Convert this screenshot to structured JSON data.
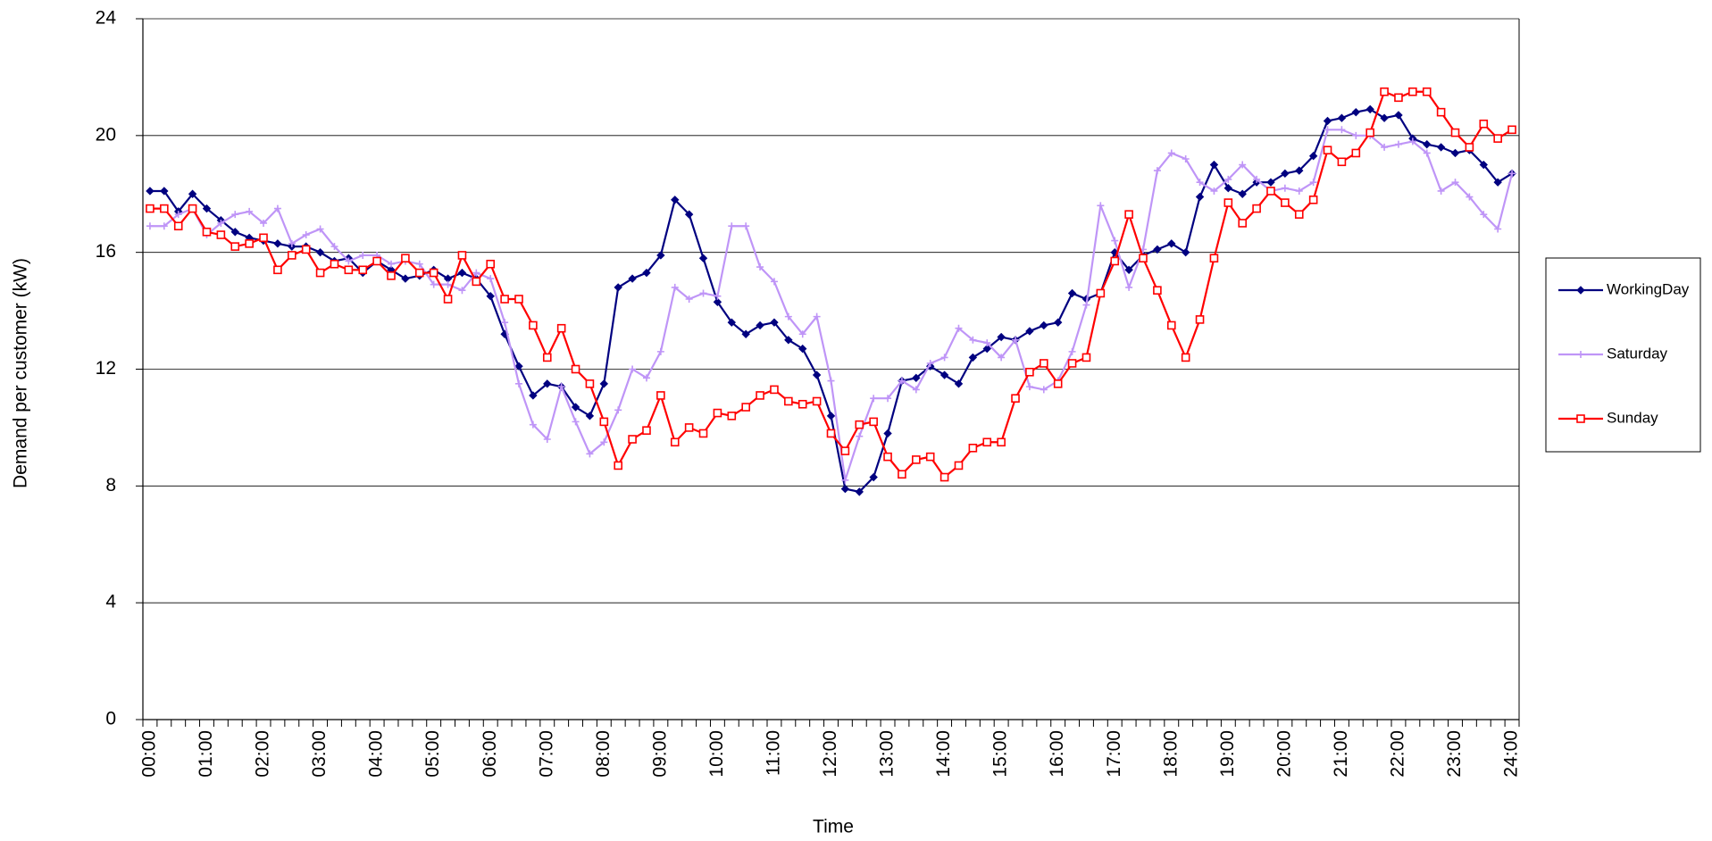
{
  "chart_data": {
    "type": "line",
    "xlabel": "Time",
    "ylabel": "Demand per customer (kW)",
    "categories": [
      "00:00",
      null,
      null,
      null,
      "01:00",
      null,
      null,
      null,
      "02:00",
      null,
      null,
      null,
      "03:00",
      null,
      null,
      null,
      "04:00",
      null,
      null,
      null,
      "05:00",
      null,
      null,
      null,
      "06:00",
      null,
      null,
      null,
      "07:00",
      null,
      null,
      null,
      "08:00",
      null,
      null,
      null,
      "09:00",
      null,
      null,
      null,
      "10:00",
      null,
      null,
      null,
      "11:00",
      null,
      null,
      null,
      "12:00",
      null,
      null,
      null,
      "13:00",
      null,
      null,
      null,
      "14:00",
      null,
      null,
      null,
      "15:00",
      null,
      null,
      null,
      "16:00",
      null,
      null,
      null,
      "17:00",
      null,
      null,
      null,
      "18:00",
      null,
      null,
      null,
      "19:00",
      null,
      null,
      null,
      "20:00",
      null,
      null,
      null,
      "21:00",
      null,
      null,
      null,
      "22:00",
      null,
      null,
      null,
      "23:00",
      null,
      null,
      null,
      "24:00"
    ],
    "series": [
      {
        "name": "WorkingDay",
        "color": "#000080",
        "marker": "diamond",
        "values": [
          18.1,
          18.1,
          17.4,
          18.0,
          17.5,
          17.1,
          16.7,
          16.5,
          16.4,
          16.3,
          16.2,
          16.2,
          16.0,
          15.7,
          15.8,
          15.3,
          15.7,
          15.4,
          15.1,
          15.2,
          15.4,
          15.1,
          15.3,
          15.1,
          14.5,
          13.2,
          12.1,
          11.1,
          11.5,
          11.4,
          10.7,
          10.4,
          11.5,
          14.8,
          15.1,
          15.3,
          15.9,
          17.8,
          17.3,
          15.8,
          14.3,
          13.6,
          13.2,
          13.5,
          13.6,
          13.0,
          12.7,
          11.8,
          10.4,
          7.9,
          7.8,
          8.3,
          9.8,
          11.6,
          11.7,
          12.1,
          11.8,
          11.5,
          12.4,
          12.7,
          13.1,
          13.0,
          13.3,
          13.5,
          13.6,
          14.6,
          14.4,
          14.6,
          16.0,
          15.4,
          15.9,
          16.1,
          16.3,
          16.0,
          17.9,
          19.0,
          18.2,
          18.0,
          18.4,
          18.4,
          18.7,
          18.8,
          19.3,
          20.5,
          20.6,
          20.8,
          20.9,
          20.6,
          20.7,
          19.9,
          19.7,
          19.6,
          19.4,
          19.5,
          19.0,
          18.4,
          18.7
        ]
      },
      {
        "name": "Saturday",
        "color": "#bf95f7",
        "marker": "plus",
        "values": [
          16.9,
          16.9,
          17.3,
          17.5,
          16.6,
          17.0,
          17.3,
          17.4,
          17.0,
          17.5,
          16.3,
          16.6,
          16.8,
          16.2,
          15.7,
          15.9,
          15.9,
          15.6,
          15.7,
          15.6,
          14.9,
          14.9,
          14.7,
          15.3,
          15.1,
          13.6,
          11.5,
          10.1,
          9.6,
          11.4,
          10.2,
          9.1,
          9.5,
          10.6,
          12.0,
          11.7,
          12.6,
          14.8,
          14.4,
          14.6,
          14.5,
          16.9,
          16.9,
          15.5,
          15.0,
          13.8,
          13.2,
          13.8,
          11.6,
          8.2,
          9.7,
          11.0,
          11.0,
          11.6,
          11.3,
          12.2,
          12.4,
          13.4,
          13.0,
          12.9,
          12.4,
          13.0,
          11.4,
          11.3,
          11.6,
          12.6,
          14.2,
          17.6,
          16.4,
          14.8,
          16.1,
          18.8,
          19.4,
          19.2,
          18.4,
          18.1,
          18.5,
          19.0,
          18.5,
          18.1,
          18.2,
          18.1,
          18.4,
          20.2,
          20.2,
          20.0,
          20.0,
          19.6,
          19.7,
          19.8,
          19.4,
          18.1,
          18.4,
          17.9,
          17.3,
          16.8,
          18.7
        ]
      },
      {
        "name": "Sunday",
        "color": "#ff0000",
        "marker": "square",
        "values": [
          17.5,
          17.5,
          16.9,
          17.5,
          16.7,
          16.6,
          16.2,
          16.3,
          16.5,
          15.4,
          15.9,
          16.1,
          15.3,
          15.6,
          15.4,
          15.4,
          15.7,
          15.2,
          15.8,
          15.3,
          15.3,
          14.4,
          15.9,
          15.0,
          15.6,
          14.4,
          14.4,
          13.5,
          12.4,
          13.4,
          12.0,
          11.5,
          10.2,
          8.7,
          9.6,
          9.9,
          11.1,
          9.5,
          10.0,
          9.8,
          10.5,
          10.4,
          10.7,
          11.1,
          11.3,
          10.9,
          10.8,
          10.9,
          9.8,
          9.2,
          10.1,
          10.2,
          9.0,
          8.4,
          8.9,
          9.0,
          8.3,
          8.7,
          9.3,
          9.5,
          9.5,
          11.0,
          11.9,
          12.2,
          11.5,
          12.2,
          12.4,
          14.6,
          15.7,
          17.3,
          15.8,
          14.7,
          13.5,
          12.4,
          13.7,
          15.8,
          17.7,
          17.0,
          17.5,
          18.1,
          17.7,
          17.3,
          17.8,
          19.5,
          19.1,
          19.4,
          20.1,
          21.5,
          21.3,
          21.5,
          21.5,
          20.8,
          20.1,
          19.6,
          20.4,
          19.9,
          20.2
        ]
      }
    ],
    "ylim": [
      0,
      24
    ],
    "yticks": [
      0,
      4,
      8,
      12,
      16,
      20,
      24
    ],
    "grid": true,
    "legend": "right"
  }
}
